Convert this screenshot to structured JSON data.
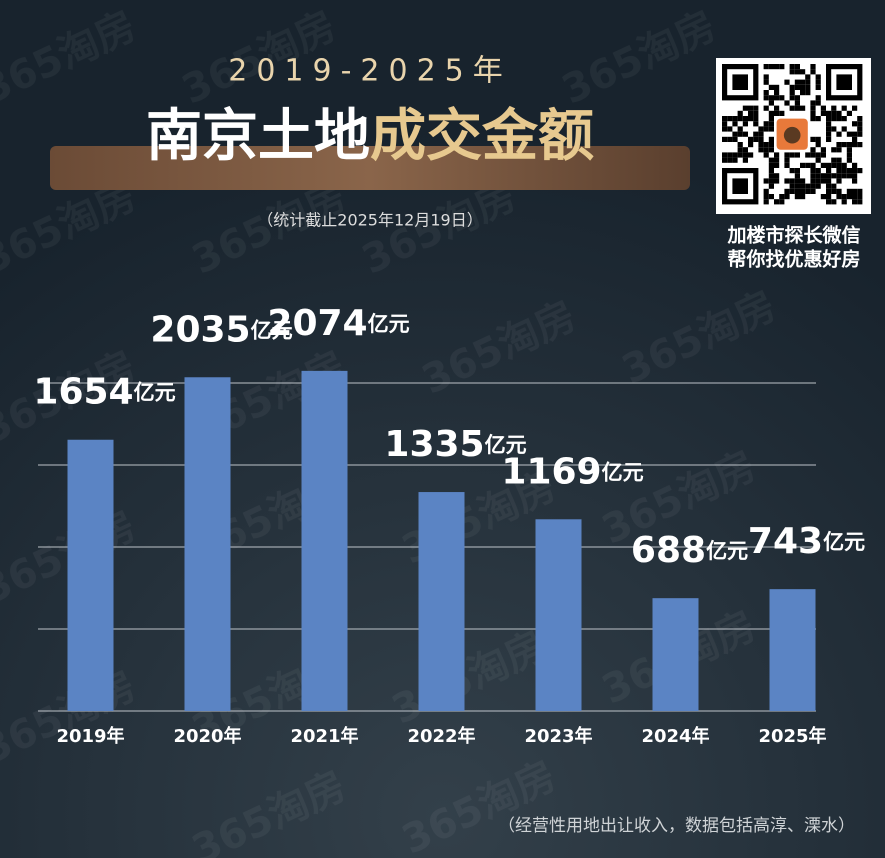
{
  "chart_data": {
    "type": "bar",
    "title": "2019-2025年",
    "headline": [
      "南京土地",
      "成交金额"
    ],
    "subtitle": "（统计截止2025年12月19日）",
    "qr_caption": [
      "加楼市探长微信",
      "帮你找优惠好房"
    ],
    "footnote": "（经营性用地出让收入，数据包括高淳、溧水）",
    "watermark": "365淘房",
    "categories": [
      "2019年",
      "2020年",
      "2021年",
      "2022年",
      "2023年",
      "2024年",
      "2025年"
    ],
    "values": [
      1654,
      2035,
      2074,
      1335,
      1169,
      688,
      743
    ],
    "unit": "亿元",
    "color": "#5b84c4",
    "ylim": [
      0,
      2500
    ],
    "yticks": [
      0,
      500,
      1000,
      1500,
      2000
    ],
    "grid": true
  }
}
